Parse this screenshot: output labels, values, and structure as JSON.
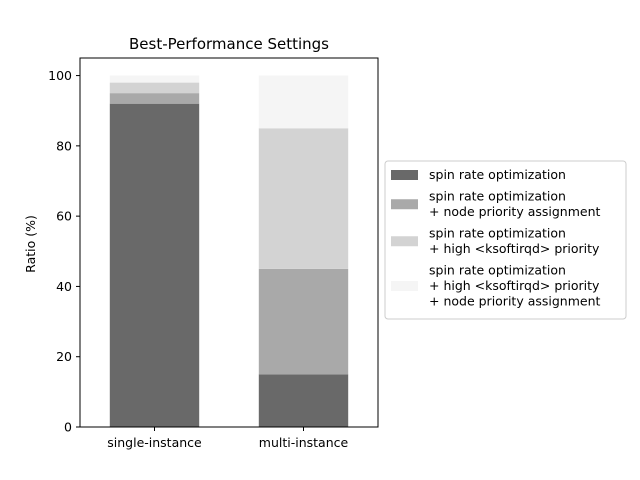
{
  "chart_data": {
    "type": "bar",
    "stacked": true,
    "title": "Best-Performance Settings",
    "xlabel": "",
    "ylabel": "Ratio (%)",
    "ylim": [
      0,
      105
    ],
    "yticks": [
      0,
      20,
      40,
      60,
      80,
      100
    ],
    "categories": [
      "single-instance",
      "multi-instance"
    ],
    "legend_position": "right",
    "grid": false,
    "series": [
      {
        "name": "spin rate optimization",
        "label_lines": [
          "spin rate optimization"
        ],
        "color": "#696969",
        "values": [
          92,
          15
        ]
      },
      {
        "name": "spin rate optimization + node priority assignment",
        "label_lines": [
          "spin rate optimization",
          "+ node priority assignment"
        ],
        "color": "#a9a9a9",
        "values": [
          3,
          30
        ]
      },
      {
        "name": "spin rate optimization + high <ksoftirqd> priority",
        "label_lines": [
          "spin rate optimization",
          "+ high <ksoftirqd> priority"
        ],
        "color": "#d3d3d3",
        "values": [
          3,
          40
        ]
      },
      {
        "name": "spin rate optimization + high <ksoftirqd> priority + node priority assignment",
        "label_lines": [
          "spin rate optimization",
          "+ high <ksoftirqd> priority",
          "+ node priority assignment"
        ],
        "color": "#f5f5f5",
        "values": [
          2,
          15
        ]
      }
    ]
  }
}
